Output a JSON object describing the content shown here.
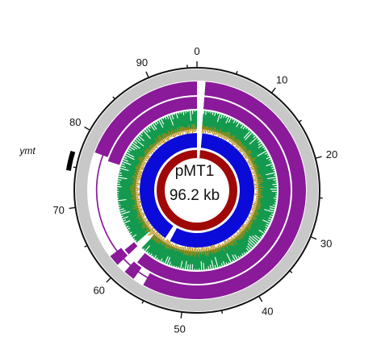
{
  "plasmid": {
    "name": "pMT1",
    "size_label": "96.2 kb",
    "total_kb": 96.2
  },
  "scale": {
    "tick_labels": [
      "0",
      "10",
      "20",
      "30",
      "40",
      "50",
      "60",
      "70",
      "80",
      "90"
    ],
    "tick_kb": [
      0,
      10,
      20,
      30,
      40,
      50,
      60,
      70,
      80,
      90
    ]
  },
  "gene": {
    "label": "ymt",
    "start_kb": 74.5,
    "end_kb": 76.8
  },
  "colors": {
    "outer_ring": "#c8c8c8",
    "purple": "#8a1a99",
    "green": "#149a4e",
    "gc_skew": "#b8860b",
    "blue": "#0b0bd9",
    "dark_red": "#a00808",
    "axis": "#111111"
  },
  "tracks": [
    {
      "name": "outer-coverage",
      "color": "purple",
      "segments_kb": [
        [
          1.2,
          56.0
        ],
        [
          57.6,
          59.2
        ],
        [
          60.6,
          62.2
        ],
        [
          77.6,
          96.2
        ]
      ]
    },
    {
      "name": "middle-coverage",
      "color": "purple",
      "segments_kb": [
        [
          1.2,
          58.7
        ],
        [
          60.6,
          61.6
        ],
        [
          77.0,
          96.2
        ]
      ]
    },
    {
      "name": "green-coverage",
      "color": "green",
      "segments_kb": [
        [
          1.2,
          59.8
        ],
        [
          61.2,
          96.2
        ]
      ]
    },
    {
      "name": "blue-coverage",
      "color": "blue",
      "segments_kb": [
        [
          1.4,
          55.6
        ],
        [
          57.1,
          96.2
        ]
      ]
    },
    {
      "name": "core-ring",
      "color": "dark_red",
      "segments_kb": [
        [
          0,
          96.2
        ]
      ]
    }
  ]
}
